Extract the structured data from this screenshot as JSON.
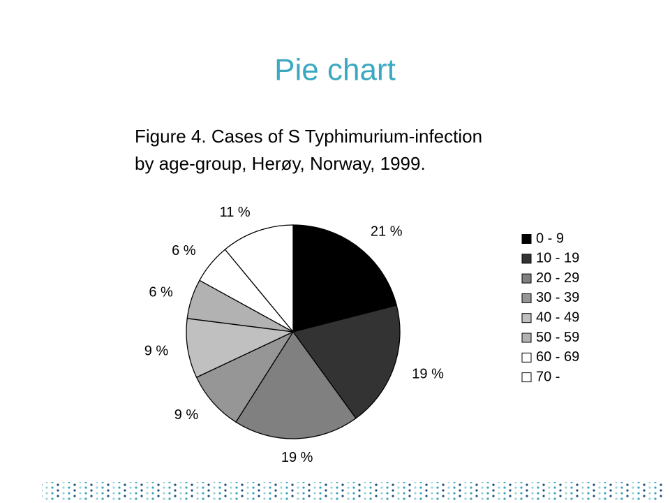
{
  "slide": {
    "title": "Pie chart"
  },
  "chart_data": {
    "type": "pie",
    "title": [
      "Figure 4. Cases of S Typhimurium-infection",
      "by age-group, Herøy, Norway, 1999."
    ],
    "categories": [
      "0 - 9",
      "10 - 19",
      "20 - 29",
      "30 - 39",
      "40 - 49",
      "50 - 59",
      "60 - 69",
      "70 -"
    ],
    "values": [
      21,
      19,
      19,
      9,
      9,
      6,
      6,
      11
    ],
    "value_labels": [
      "21 %",
      "19 %",
      "19 %",
      "9 %",
      "9 %",
      "6 %",
      "6 %",
      "11 %"
    ],
    "colors": [
      "#000000",
      "#333333",
      "#808080",
      "#969696",
      "#c0c0c0",
      "#b2b2b2",
      "#ffffff",
      "#ffffff"
    ],
    "legend": "right"
  }
}
